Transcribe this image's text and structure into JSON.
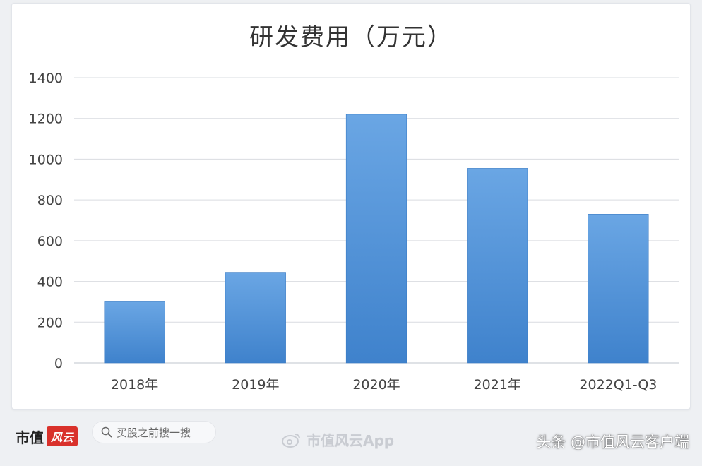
{
  "chart_data": {
    "type": "bar",
    "title": "研发费用（万元）",
    "categories": [
      "2018年",
      "2019年",
      "2020年",
      "2021年",
      "2022Q1-Q3"
    ],
    "values": [
      300,
      445,
      1220,
      955,
      730
    ],
    "ylim": [
      0,
      1400
    ],
    "yticks": [
      0,
      200,
      400,
      600,
      800,
      1000,
      1200,
      1400
    ],
    "grid": true,
    "bar_color": "#4a8fd6",
    "bar_color_light": "#6aa6e4"
  },
  "footer": {
    "logo_text": "市值",
    "logo_badge": "风云",
    "search_placeholder": "买股之前搜一搜",
    "app_watermark": "市值风云App",
    "source_credit": "头条 @市值风云客户端"
  },
  "icons": {
    "search": "search-icon",
    "weibo": "weibo-icon"
  }
}
